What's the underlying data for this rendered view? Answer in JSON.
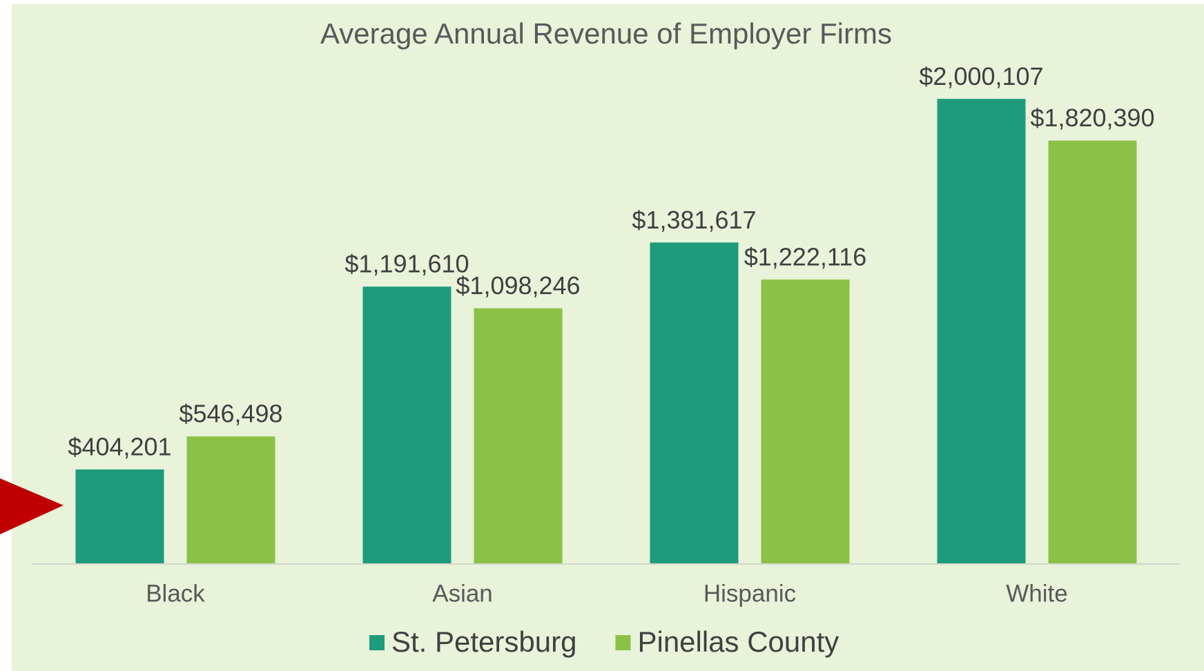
{
  "chart_data": {
    "type": "bar",
    "title": "Average Annual Revenue of Employer Firms",
    "categories": [
      "Black",
      "Asian",
      "Hispanic",
      "White"
    ],
    "series": [
      {
        "name": "St. Petersburg",
        "color": "#1e9b7b",
        "values": [
          404201,
          1191610,
          1381617,
          2000107
        ],
        "value_labels": [
          "$404,201",
          "$1,191,610",
          "$1,381,617",
          "$2,000,107"
        ]
      },
      {
        "name": "Pinellas County",
        "color": "#8bc147",
        "values": [
          546498,
          1098246,
          1222116,
          1820390
        ],
        "value_labels": [
          "$546,498",
          "$1,098,246",
          "$1,222,116",
          "$1,820,390"
        ]
      }
    ],
    "ylim": [
      0,
      2200000
    ],
    "legend": "bottom"
  }
}
